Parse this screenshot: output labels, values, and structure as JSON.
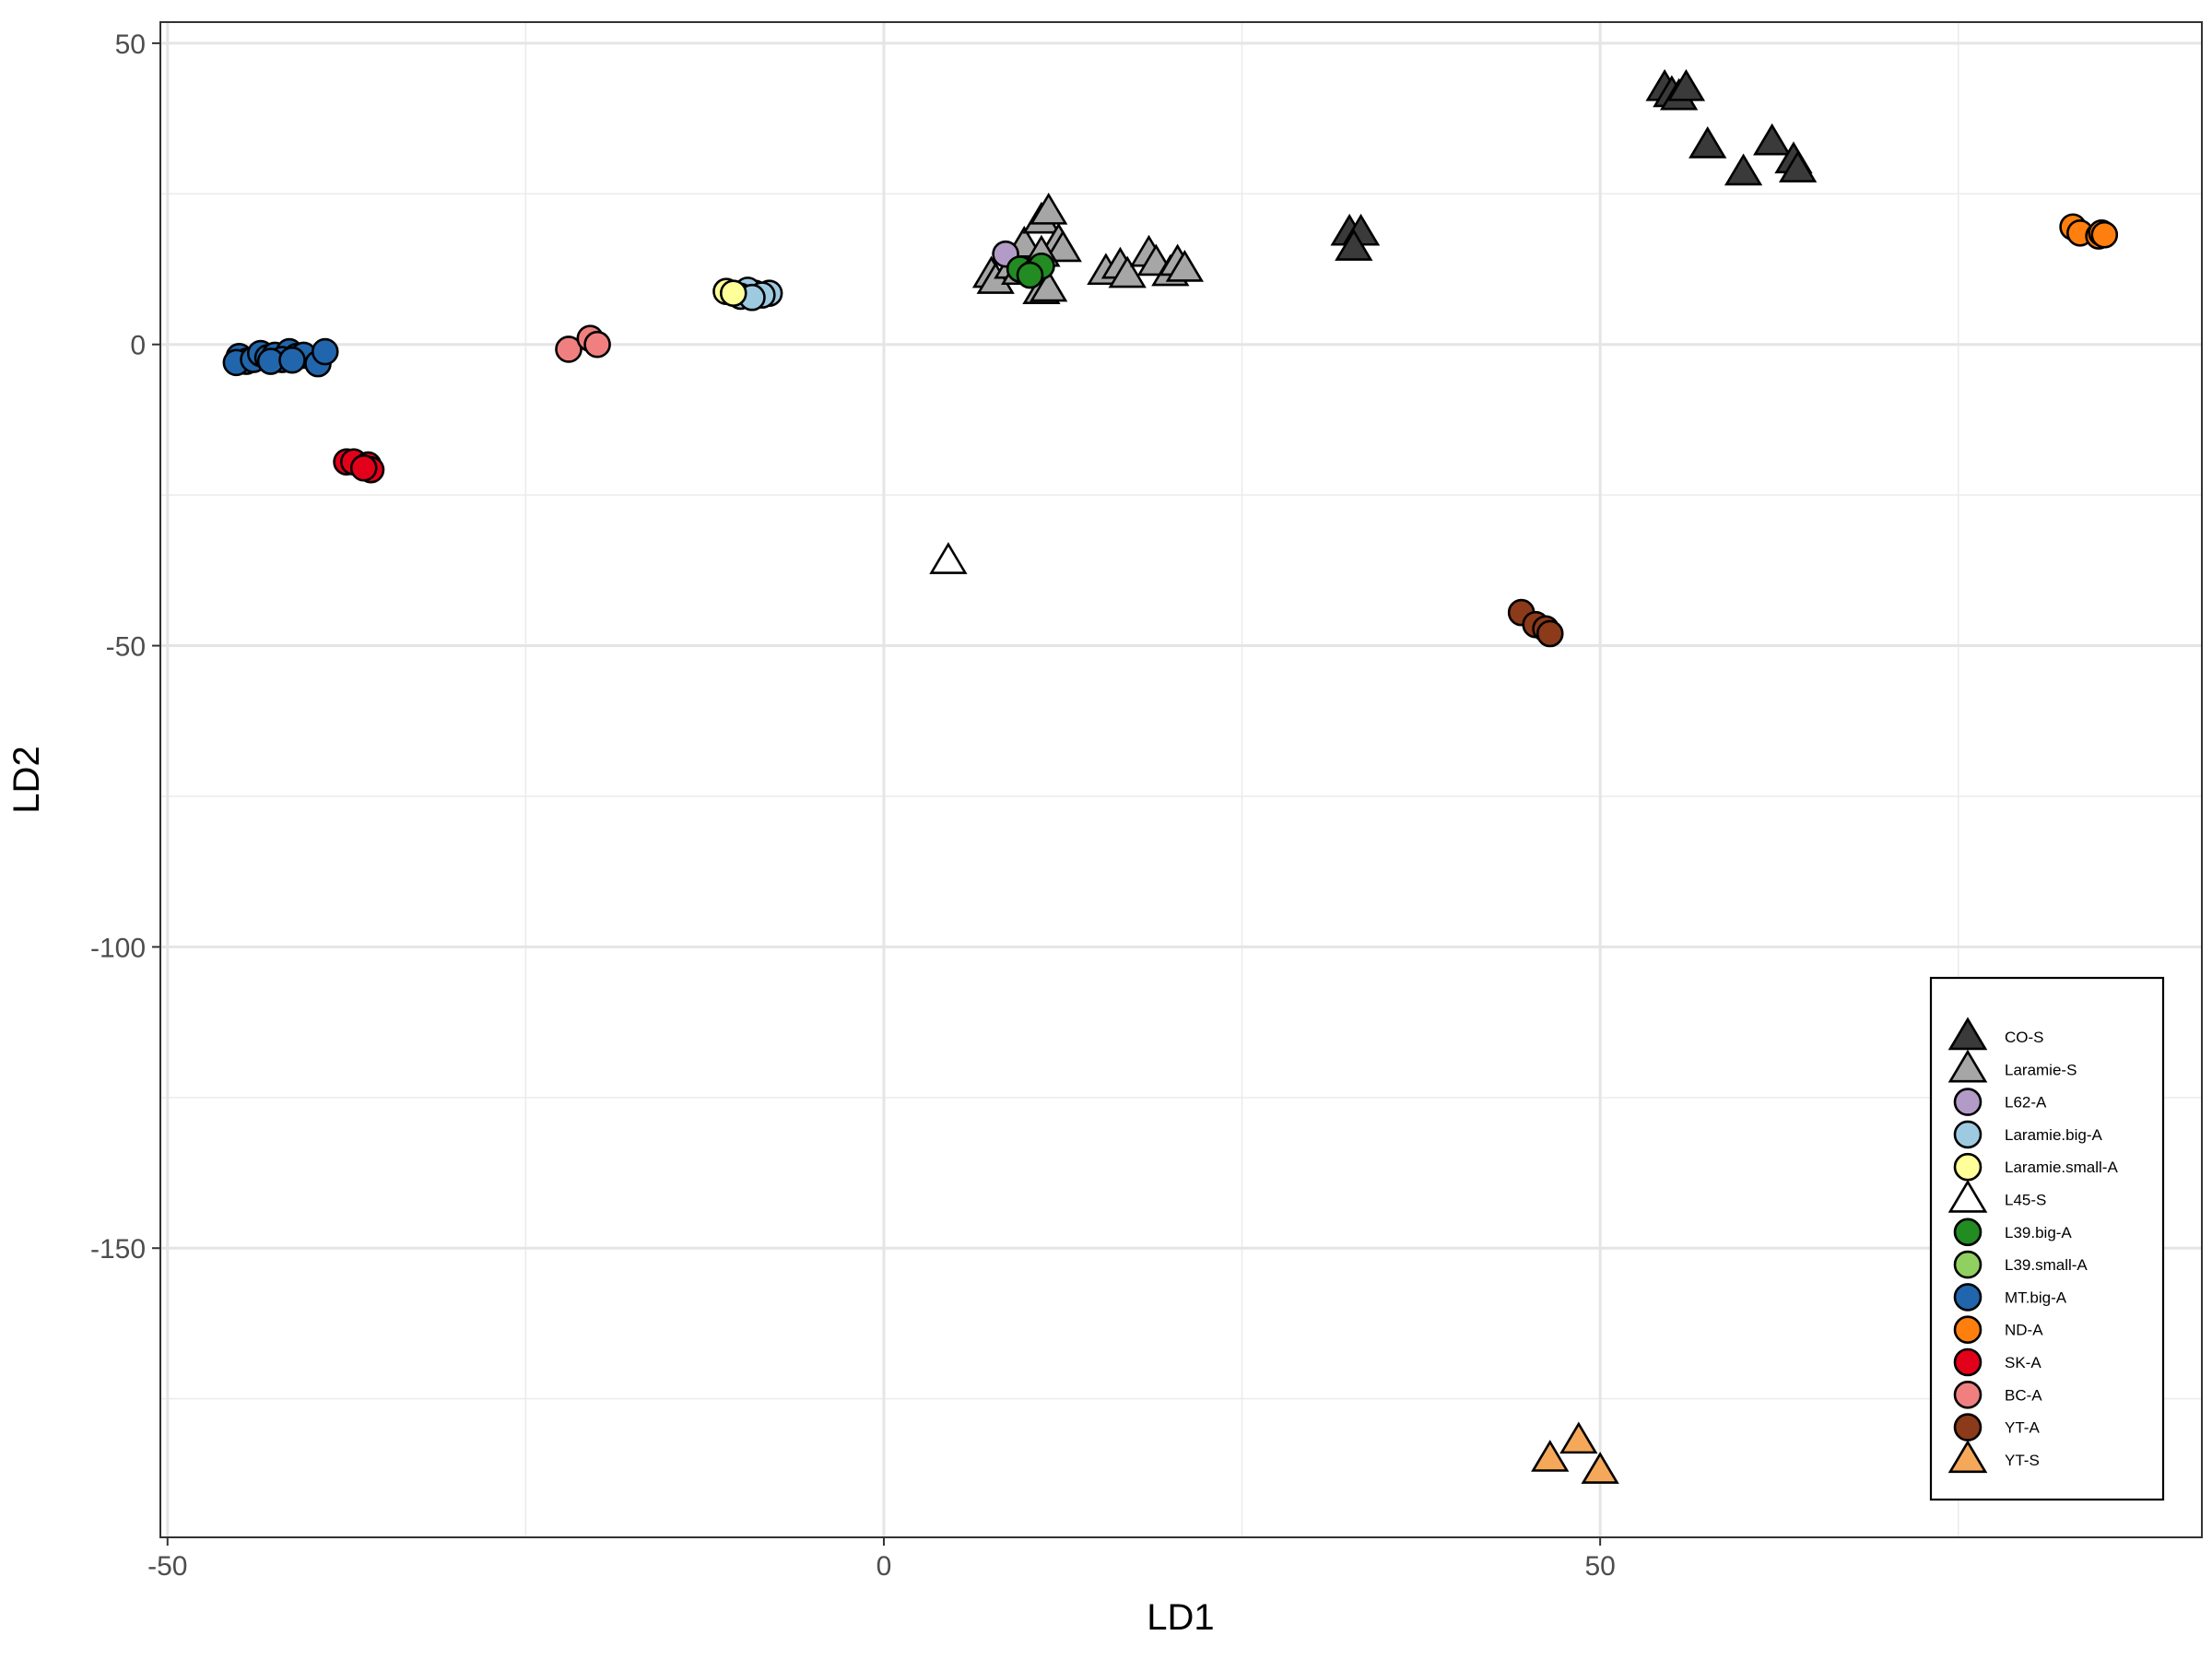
{
  "chart_data": {
    "type": "scatter",
    "title": "",
    "xlabel": "LD1",
    "ylabel": "LD2",
    "xlim": [
      -50.5,
      92
    ],
    "ylim": [
      -198,
      53.5
    ],
    "xticks": [
      -50,
      0,
      50
    ],
    "xtick_labels": [
      "-50",
      "0",
      "50"
    ],
    "yticks": [
      50,
      0,
      -50,
      -100,
      -150
    ],
    "ytick_labels": [
      "50",
      "0",
      "-50",
      "-100",
      "-150"
    ],
    "grid": true,
    "theme": "bw",
    "legend_position": "bottom-right",
    "series": [
      {
        "name": "CO-S",
        "shape": "triangle",
        "color": "#3a3a3a",
        "points": [
          [
            54.5,
            42.5
          ],
          [
            55,
            41.5
          ],
          [
            55.5,
            41
          ],
          [
            56,
            42.5
          ],
          [
            57.5,
            33
          ],
          [
            60,
            28.5
          ],
          [
            62,
            33.5
          ],
          [
            63.5,
            30.5
          ],
          [
            63.8,
            29
          ],
          [
            32.5,
            18.5
          ],
          [
            33.3,
            18.5
          ],
          [
            32.8,
            16
          ]
        ]
      },
      {
        "name": "Laramie-S",
        "shape": "triangle",
        "color": "#a6a6a6",
        "points": [
          [
            7.5,
            11.5
          ],
          [
            7.8,
            10.5
          ],
          [
            9,
            13
          ],
          [
            9.5,
            12
          ],
          [
            9.8,
            16.5
          ],
          [
            11,
            20.5
          ],
          [
            11.5,
            22
          ],
          [
            12.2,
            17
          ],
          [
            12.5,
            15.8
          ],
          [
            11,
            15
          ],
          [
            11,
            8.8
          ],
          [
            11.5,
            9.2
          ],
          [
            15.5,
            12
          ],
          [
            16.5,
            13
          ],
          [
            17,
            11.5
          ],
          [
            18.5,
            15
          ],
          [
            19,
            13.5
          ],
          [
            20,
            11.8
          ],
          [
            20.5,
            13.5
          ],
          [
            21,
            12.5
          ]
        ]
      },
      {
        "name": "L62-A",
        "shape": "circle",
        "color": "#b39bc8",
        "points": [
          [
            8.5,
            15
          ]
        ]
      },
      {
        "name": "Laramie.big-A",
        "shape": "circle",
        "color": "#9ecae1",
        "points": [
          [
            -9,
            8.5
          ],
          [
            -9.5,
            9
          ],
          [
            -8,
            8.5
          ],
          [
            -8.5,
            8.2
          ],
          [
            -10,
            8
          ],
          [
            -9.2,
            7.8
          ]
        ]
      },
      {
        "name": "Laramie.small-A",
        "shape": "circle",
        "color": "#ffff99",
        "points": [
          [
            -11,
            8.8
          ],
          [
            -10.5,
            8.5
          ]
        ]
      },
      {
        "name": "L45-S",
        "shape": "triangle",
        "color": "#ffffff",
        "points": [
          [
            4.5,
            -36
          ]
        ]
      },
      {
        "name": "L39.big-A",
        "shape": "circle",
        "color": "#228b22",
        "points": [
          [
            9.5,
            12.5
          ],
          [
            10.5,
            12
          ],
          [
            11,
            13
          ],
          [
            10.2,
            11.5
          ]
        ]
      },
      {
        "name": "L39.small-A",
        "shape": "circle",
        "color": "#90d060",
        "points": []
      },
      {
        "name": "MT.big-A",
        "shape": "circle",
        "color": "#2166ac",
        "points": [
          [
            -45,
            -2
          ],
          [
            -44.5,
            -2.8
          ],
          [
            -45.2,
            -3
          ],
          [
            -44,
            -2.5
          ],
          [
            -43.5,
            -1.5
          ],
          [
            -43,
            -2.2
          ],
          [
            -42.5,
            -1.8
          ],
          [
            -41.5,
            -1.2
          ],
          [
            -42,
            -2.5
          ],
          [
            -41,
            -2
          ],
          [
            -40.5,
            -1.8
          ],
          [
            -42.8,
            -2.8
          ],
          [
            -39.5,
            -3.2
          ],
          [
            -39,
            -1.2
          ],
          [
            -41.3,
            -2.6
          ]
        ]
      },
      {
        "name": "ND-A",
        "shape": "circle",
        "color": "#ff7f0e",
        "points": [
          [
            83,
            19.5
          ],
          [
            83.5,
            18.5
          ],
          [
            84.8,
            18
          ],
          [
            85,
            18.5
          ],
          [
            85.2,
            18.2
          ]
        ]
      },
      {
        "name": "SK-A",
        "shape": "circle",
        "color": "#e3001b",
        "points": [
          [
            -37.5,
            -19.5
          ],
          [
            -37,
            -19.5
          ],
          [
            -36,
            -20
          ],
          [
            -35.8,
            -20.8
          ],
          [
            -36.3,
            -20.5
          ]
        ]
      },
      {
        "name": "BC-A",
        "shape": "circle",
        "color": "#f08080",
        "points": [
          [
            -22,
            -0.8
          ],
          [
            -20.5,
            1
          ],
          [
            -20,
            0
          ]
        ]
      },
      {
        "name": "YT-A",
        "shape": "circle",
        "color": "#8b3a1a",
        "points": [
          [
            44.5,
            -44.5
          ],
          [
            45.5,
            -46.5
          ],
          [
            46.2,
            -47.2
          ],
          [
            46.5,
            -48
          ]
        ]
      },
      {
        "name": "YT-S",
        "shape": "triangle",
        "color": "#f5a85a",
        "points": [
          [
            46.5,
            -185
          ],
          [
            48.5,
            -182
          ],
          [
            50,
            -187
          ]
        ]
      }
    ]
  }
}
